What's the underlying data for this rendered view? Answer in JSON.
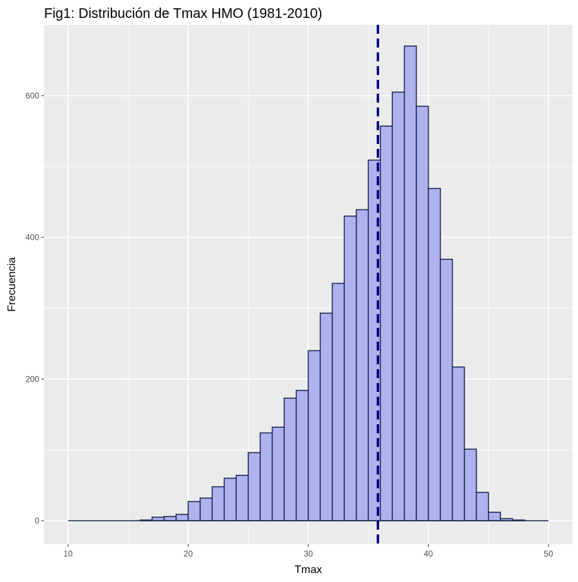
{
  "chart_data": {
    "type": "bar",
    "title": "Fig1: Distribución de Tmax HMO (1981-2010)",
    "xlabel": "Tmax",
    "ylabel": "Frecuencia",
    "xlim": [
      8,
      52
    ],
    "ylim": [
      -33,
      700
    ],
    "xticks": [
      10,
      20,
      30,
      40,
      50
    ],
    "yticks": [
      0,
      200,
      400,
      600
    ],
    "xtick_labels": [
      "10",
      "20",
      "30",
      "40",
      "50"
    ],
    "ytick_labels": [
      "0",
      "200",
      "400",
      "600"
    ],
    "bin_width": 1,
    "bin_start": 10,
    "values": [
      0,
      0,
      0,
      0,
      0,
      0,
      1,
      5,
      6,
      9,
      27,
      32,
      48,
      60,
      64,
      96,
      124,
      132,
      173,
      184,
      240,
      293,
      335,
      430,
      439,
      509,
      557,
      605,
      670,
      585,
      469,
      369,
      217,
      101,
      40,
      12,
      3,
      1,
      0,
      0
    ],
    "mean_line": 35.8,
    "grid": true,
    "legend": "none",
    "colors": {
      "panel_background": "#ebebeb",
      "grid_major": "#ffffff",
      "bar_fill": "#afb2ef",
      "bar_stroke": "#1d2b53",
      "mean_line": "#000080",
      "baseline": "#1d2b53"
    }
  }
}
